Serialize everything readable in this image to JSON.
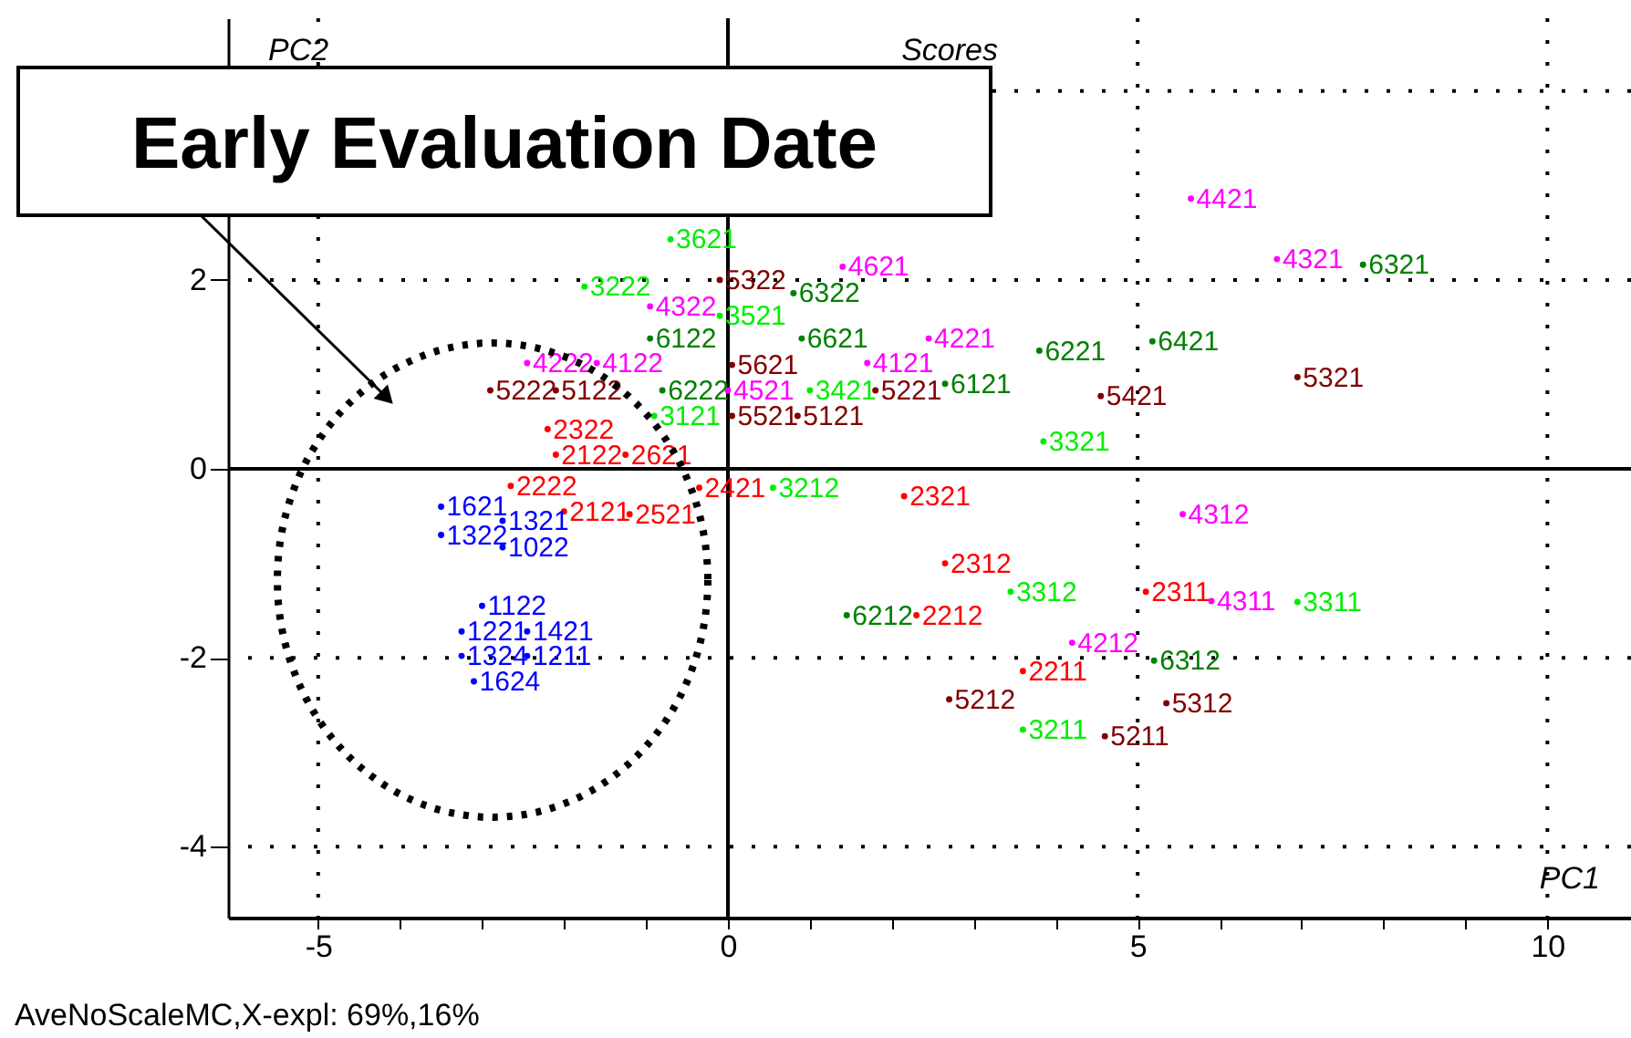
{
  "chart_data": {
    "type": "scatter",
    "title": "Scores",
    "xlabel": "PC1",
    "ylabel": "PC2",
    "annotations": [
      "Early Evaluation Date",
      "AveNoScaleMC,X-expl: 69%,16%",
      {
        "text": "1621",
        "x": -3.5,
        "y": -0.4
      },
      {
        "text": "1321",
        "x": -2.75,
        "y": -0.55
      },
      {
        "text": "1322",
        "x": -3.5,
        "y": -0.7
      },
      {
        "text": "1022",
        "x": -2.75,
        "y": -0.83
      },
      {
        "text": "1122",
        "x": -3.0,
        "y": -1.45
      },
      {
        "text": "1221",
        "x": -3.25,
        "y": -1.72
      },
      {
        "text": "1421",
        "x": -2.45,
        "y": -1.72
      },
      {
        "text": "1211",
        "x": -2.45,
        "y": -1.98
      },
      {
        "text": "1324",
        "x": -3.25,
        "y": -1.98
      },
      {
        "text": "1624",
        "x": -3.1,
        "y": -2.25
      },
      {
        "text": "2322",
        "x": -2.2,
        "y": 0.42
      },
      {
        "text": "2122",
        "x": -2.1,
        "y": 0.15
      },
      {
        "text": "2621",
        "x": -1.25,
        "y": 0.15
      },
      {
        "text": "2421",
        "x": -0.35,
        "y": -0.2
      },
      {
        "text": "2222",
        "x": -2.65,
        "y": -0.18
      },
      {
        "text": "2121",
        "x": -2.0,
        "y": -0.45
      },
      {
        "text": "2521",
        "x": -1.2,
        "y": -0.48
      },
      {
        "text": "2321",
        "x": 2.15,
        "y": -0.29
      },
      {
        "text": "2312",
        "x": 2.65,
        "y": -1.0
      },
      {
        "text": "2212",
        "x": 2.3,
        "y": -1.55
      },
      {
        "text": "2211",
        "x": 3.6,
        "y": -2.14
      },
      {
        "text": "2311",
        "x": 5.1,
        "y": -1.3
      },
      {
        "text": "3621",
        "x": -0.7,
        "y": 2.43
      },
      {
        "text": "3222",
        "x": -1.75,
        "y": 1.93
      },
      {
        "text": "3521",
        "x": -0.1,
        "y": 1.62
      },
      {
        "text": "3121",
        "x": -0.9,
        "y": 0.56
      },
      {
        "text": "3421",
        "x": 1.0,
        "y": 0.83
      },
      {
        "text": "3212",
        "x": 0.55,
        "y": -0.2
      },
      {
        "text": "3321",
        "x": 3.85,
        "y": 0.29
      },
      {
        "text": "3312",
        "x": 3.45,
        "y": -1.3
      },
      {
        "text": "3311",
        "x": 6.95,
        "y": -1.41
      },
      {
        "text": "3211",
        "x": 3.6,
        "y": -2.76
      },
      {
        "text": "4421",
        "x": 5.65,
        "y": 2.86
      },
      {
        "text": "4321",
        "x": 6.7,
        "y": 2.22
      },
      {
        "text": "4621",
        "x": 1.4,
        "y": 2.14
      },
      {
        "text": "4322",
        "x": -0.95,
        "y": 1.72
      },
      {
        "text": "4222",
        "x": -2.45,
        "y": 1.12
      },
      {
        "text": "4122",
        "x": -1.6,
        "y": 1.12
      },
      {
        "text": "4521",
        "x": 0.0,
        "y": 0.83
      },
      {
        "text": "4121",
        "x": 1.7,
        "y": 1.12
      },
      {
        "text": "4221",
        "x": 2.45,
        "y": 1.38
      },
      {
        "text": "4312",
        "x": 5.55,
        "y": -0.48
      },
      {
        "text": "4311",
        "x": 5.9,
        "y": -1.4
      },
      {
        "text": "4212",
        "x": 4.2,
        "y": -1.84
      },
      {
        "text": "5322",
        "x": -0.1,
        "y": 2.0
      },
      {
        "text": "5621",
        "x": 0.05,
        "y": 1.1
      },
      {
        "text": "5222",
        "x": -2.9,
        "y": 0.83
      },
      {
        "text": "5122",
        "x": -2.1,
        "y": 0.83
      },
      {
        "text": "5521",
        "x": 0.05,
        "y": 0.56
      },
      {
        "text": "5121",
        "x": 0.85,
        "y": 0.56
      },
      {
        "text": "5221",
        "x": 1.8,
        "y": 0.83
      },
      {
        "text": "5421",
        "x": 4.55,
        "y": 0.77
      },
      {
        "text": "5321",
        "x": 6.95,
        "y": 0.97
      },
      {
        "text": "5212",
        "x": 2.7,
        "y": -2.44
      },
      {
        "text": "5312",
        "x": 5.35,
        "y": -2.48
      },
      {
        "text": "5211",
        "x": 4.6,
        "y": -2.83
      },
      {
        "text": "6322",
        "x": 0.8,
        "y": 1.86
      },
      {
        "text": "6122",
        "x": -0.95,
        "y": 1.38
      },
      {
        "text": "6222",
        "x": -0.8,
        "y": 0.83
      },
      {
        "text": "6621",
        "x": 0.9,
        "y": 1.38
      },
      {
        "text": "6121",
        "x": 2.65,
        "y": 0.9
      },
      {
        "text": "6221",
        "x": 3.8,
        "y": 1.25
      },
      {
        "text": "6421",
        "x": 5.18,
        "y": 1.35
      },
      {
        "text": "6321",
        "x": 7.75,
        "y": 2.16
      },
      {
        "text": "6212",
        "x": 1.45,
        "y": -1.55
      },
      {
        "text": "6312",
        "x": 5.2,
        "y": -2.03
      }
    ],
    "xlim": [
      -6.1,
      11.02
    ],
    "ylim": [
      -4.75,
      4.77
    ],
    "xticks": [
      -5,
      {
        "value": -4,
        "label": null
      },
      {
        "value": -3,
        "label": null
      },
      {
        "value": -2,
        "label": null
      },
      {
        "value": -1,
        "label": null
      },
      0,
      {
        "value": 1,
        "label": null
      },
      {
        "value": 2,
        "label": null
      },
      {
        "value": 3,
        "label": null
      },
      {
        "value": 4,
        "label": null
      },
      5,
      {
        "value": 6,
        "label": null
      },
      {
        "value": 7,
        "label": null
      },
      {
        "value": 8,
        "label": null
      },
      {
        "value": 9,
        "label": null
      },
      10
    ],
    "yticks": [
      -4,
      -2,
      0,
      2,
      {
        "value": 4,
        "label": null
      }
    ],
    "grid": true,
    "marker": "circle",
    "series": [
      {
        "color": "#0000ff",
        "x": [
          -3.5,
          -2.75,
          -3.5,
          -2.75,
          -3.0,
          -3.25,
          -2.45,
          -2.45,
          -3.25,
          -3.1
        ],
        "values": [
          -0.4,
          -0.55,
          -0.7,
          -0.83,
          -1.45,
          -1.72,
          -1.72,
          -1.98,
          -1.98,
          -2.25
        ]
      },
      {
        "color": "#ff0000",
        "x": [
          -2.2,
          -2.1,
          -1.25,
          -0.35,
          -2.65,
          -2.0,
          -1.2,
          2.15,
          2.65,
          2.3,
          3.6,
          5.1
        ],
        "values": [
          0.42,
          0.15,
          0.15,
          -0.2,
          -0.18,
          -0.45,
          -0.48,
          -0.29,
          -1.0,
          -1.55,
          -2.14,
          -1.3
        ]
      },
      {
        "color": "#00ee00",
        "x": [
          -0.7,
          -1.75,
          -0.1,
          -0.9,
          1.0,
          0.55,
          3.85,
          3.45,
          6.95,
          3.6
        ],
        "values": [
          2.43,
          1.93,
          1.62,
          0.56,
          0.83,
          -0.2,
          0.29,
          -1.3,
          -1.41,
          -2.76
        ]
      },
      {
        "color": "#ff00ff",
        "x": [
          5.65,
          6.7,
          1.4,
          -0.95,
          -2.45,
          -1.6,
          0.0,
          1.7,
          2.45,
          5.55,
          5.9,
          4.2
        ],
        "values": [
          2.86,
          2.22,
          2.14,
          1.72,
          1.12,
          1.12,
          0.83,
          1.12,
          1.38,
          -0.48,
          -1.4,
          -1.84
        ]
      },
      {
        "color": "#800000",
        "x": [
          -0.1,
          0.05,
          -2.9,
          -2.1,
          0.05,
          0.85,
          1.8,
          4.55,
          6.95,
          2.7,
          5.35,
          4.6
        ],
        "values": [
          2.0,
          1.1,
          0.83,
          0.83,
          0.56,
          0.56,
          0.83,
          0.77,
          0.97,
          -2.44,
          -2.48,
          -2.83
        ]
      },
      {
        "color": "#008000",
        "x": [
          0.8,
          -0.95,
          -0.8,
          0.9,
          2.65,
          3.8,
          5.18,
          7.75,
          1.45,
          5.2
        ],
        "values": [
          1.86,
          1.38,
          0.83,
          1.38,
          0.9,
          1.25,
          1.35,
          2.16,
          -1.55,
          -2.03
        ]
      }
    ]
  }
}
